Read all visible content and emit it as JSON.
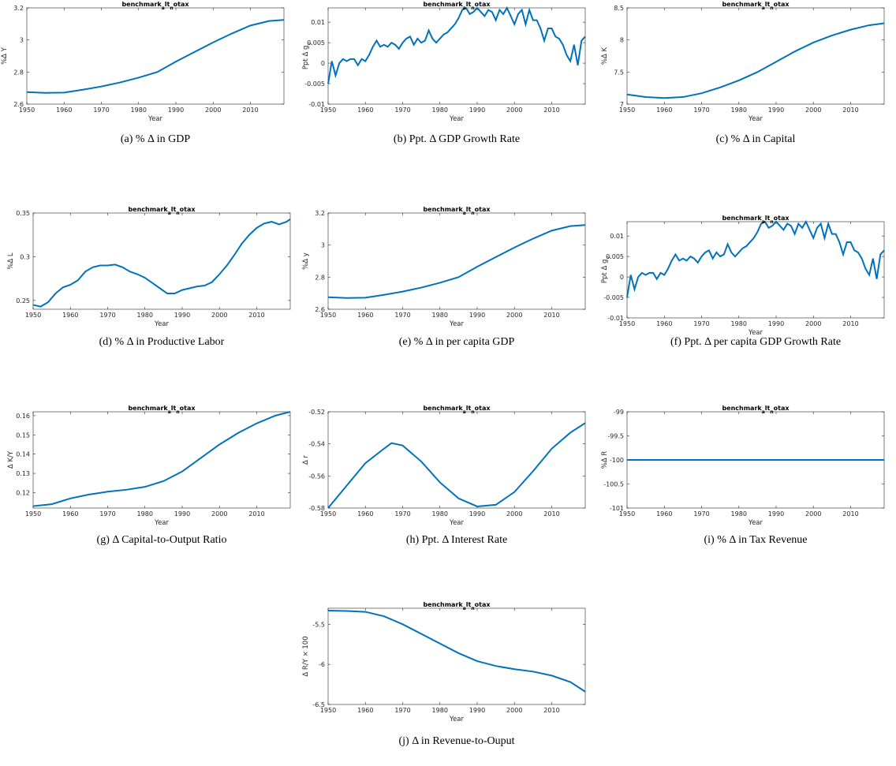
{
  "chart_data": [
    {
      "type": "line",
      "title": "benchmark_alt_notax",
      "xlabel": "Year",
      "ylabel": "%Δ Y",
      "caption": "(a) % Δ in GDP",
      "xlim": [
        1950,
        2019
      ],
      "xticks": [
        1950,
        1960,
        1970,
        1980,
        1990,
        2000,
        2010
      ],
      "ylim": [
        2.6,
        3.2
      ],
      "yticks": [
        2.6,
        2.8,
        3,
        3.2
      ],
      "series": [
        {
          "color": "#0072bd",
          "x": [
            1950,
            1955,
            1960,
            1965,
            1970,
            1975,
            1980,
            1985,
            1990,
            1995,
            2000,
            2005,
            2010,
            2015,
            2019
          ],
          "values": [
            2.675,
            2.67,
            2.672,
            2.69,
            2.71,
            2.735,
            2.765,
            2.8,
            2.865,
            2.925,
            2.985,
            3.04,
            3.09,
            3.118,
            3.125
          ]
        }
      ]
    },
    {
      "type": "line",
      "title": "benchmark_alt_notax",
      "xlabel": "Year",
      "ylabel": "Ppt Δ g_y",
      "caption": "(b) Ppt. Δ GDP Growth Rate",
      "xlim": [
        1950,
        2019
      ],
      "xticks": [
        1950,
        1960,
        1970,
        1980,
        1990,
        2000,
        2010
      ],
      "ylim": [
        -0.01,
        0.0135
      ],
      "yticks": [
        -0.01,
        -0.005,
        0,
        0.005,
        0.01
      ],
      "series": [
        {
          "color": "#0072bd",
          "x": [
            1950,
            1951,
            1952,
            1953,
            1954,
            1955,
            1956,
            1957,
            1958,
            1959,
            1960,
            1961,
            1962,
            1963,
            1964,
            1965,
            1966,
            1967,
            1968,
            1969,
            1970,
            1971,
            1972,
            1973,
            1974,
            1975,
            1976,
            1977,
            1978,
            1979,
            1980,
            1981,
            1982,
            1983,
            1984,
            1985,
            1986,
            1987,
            1988,
            1989,
            1990,
            1991,
            1992,
            1993,
            1994,
            1995,
            1996,
            1997,
            1998,
            1999,
            2000,
            2001,
            2002,
            2003,
            2004,
            2005,
            2006,
            2007,
            2008,
            2009,
            2010,
            2011,
            2012,
            2013,
            2014,
            2015,
            2016,
            2017,
            2018,
            2019
          ],
          "values": [
            -0.005,
            0.0005,
            -0.003,
            0,
            0.001,
            0.0005,
            0.001,
            0.001,
            -0.0005,
            0.001,
            0.0005,
            0.002,
            0.004,
            0.0055,
            0.004,
            0.0045,
            0.004,
            0.005,
            0.0045,
            0.0035,
            0.005,
            0.006,
            0.0065,
            0.0045,
            0.006,
            0.005,
            0.0055,
            0.008,
            0.006,
            0.005,
            0.006,
            0.007,
            0.0075,
            0.0085,
            0.0095,
            0.011,
            0.013,
            0.0135,
            0.012,
            0.0125,
            0.0135,
            0.0125,
            0.0115,
            0.013,
            0.0125,
            0.0105,
            0.013,
            0.012,
            0.0135,
            0.0115,
            0.0095,
            0.012,
            0.013,
            0.0095,
            0.013,
            0.0105,
            0.0105,
            0.0085,
            0.0055,
            0.0085,
            0.0085,
            0.0065,
            0.006,
            0.0045,
            0.002,
            0.0005,
            0.0045,
            -0.0005,
            0.0055,
            0.0065
          ]
        }
      ]
    },
    {
      "type": "line",
      "title": "benchmark_alt_notax",
      "xlabel": "Year",
      "ylabel": "%Δ K",
      "caption": "(c) % Δ in Capital",
      "xlim": [
        1950,
        2019
      ],
      "xticks": [
        1950,
        1960,
        1970,
        1980,
        1990,
        2000,
        2010
      ],
      "ylim": [
        7,
        8.5
      ],
      "yticks": [
        7,
        7.5,
        8,
        8.5
      ],
      "series": [
        {
          "color": "#0072bd",
          "x": [
            1950,
            1955,
            1960,
            1965,
            1970,
            1975,
            1980,
            1985,
            1990,
            1995,
            2000,
            2005,
            2010,
            2015,
            2019
          ],
          "values": [
            7.15,
            7.11,
            7.095,
            7.11,
            7.17,
            7.26,
            7.37,
            7.5,
            7.66,
            7.82,
            7.96,
            8.07,
            8.16,
            8.23,
            8.26
          ]
        }
      ]
    },
    {
      "type": "line",
      "title": "benchmark_alt_notax",
      "xlabel": "Year",
      "ylabel": "%Δ L",
      "caption": "(d) % Δ in Productive Labor",
      "xlim": [
        1950,
        2019
      ],
      "xticks": [
        1950,
        1960,
        1970,
        1980,
        1990,
        2000,
        2010
      ],
      "ylim": [
        0.24,
        0.35
      ],
      "yticks": [
        0.25,
        0.3,
        0.35
      ],
      "series": [
        {
          "color": "#0072bd",
          "x": [
            1950,
            1952,
            1954,
            1956,
            1958,
            1960,
            1962,
            1964,
            1966,
            1968,
            1970,
            1972,
            1974,
            1976,
            1978,
            1980,
            1982,
            1984,
            1986,
            1988,
            1990,
            1992,
            1994,
            1996,
            1998,
            2000,
            2002,
            2004,
            2006,
            2008,
            2010,
            2012,
            2014,
            2016,
            2018,
            2019
          ],
          "values": [
            0.245,
            0.243,
            0.248,
            0.258,
            0.265,
            0.268,
            0.273,
            0.283,
            0.288,
            0.29,
            0.29,
            0.291,
            0.288,
            0.283,
            0.28,
            0.276,
            0.27,
            0.264,
            0.258,
            0.258,
            0.262,
            0.264,
            0.266,
            0.267,
            0.271,
            0.28,
            0.29,
            0.302,
            0.315,
            0.325,
            0.333,
            0.338,
            0.34,
            0.337,
            0.34,
            0.343
          ]
        }
      ]
    },
    {
      "type": "line",
      "title": "benchmark_alt_notax",
      "xlabel": "Year",
      "ylabel": "%Δ y",
      "caption": "(e) % Δ in per capita GDP",
      "xlim": [
        1950,
        2019
      ],
      "xticks": [
        1950,
        1960,
        1970,
        1980,
        1990,
        2000,
        2010
      ],
      "ylim": [
        2.6,
        3.2
      ],
      "yticks": [
        2.6,
        2.8,
        3,
        3.2
      ],
      "series": [
        {
          "color": "#0072bd",
          "x": [
            1950,
            1955,
            1960,
            1965,
            1970,
            1975,
            1980,
            1985,
            1990,
            1995,
            2000,
            2005,
            2010,
            2015,
            2019
          ],
          "values": [
            2.675,
            2.67,
            2.672,
            2.69,
            2.71,
            2.735,
            2.765,
            2.8,
            2.865,
            2.925,
            2.985,
            3.04,
            3.09,
            3.118,
            3.125
          ]
        }
      ]
    },
    {
      "type": "line",
      "title": "benchmark_alt_notax",
      "xlabel": "Year",
      "ylabel": "Ppt Δ g_y",
      "caption": "(f) Ppt. Δ per capita GDP Growth Rate",
      "xlim": [
        1950,
        2019
      ],
      "xticks": [
        1950,
        1960,
        1970,
        1980,
        1990,
        2000,
        2010
      ],
      "ylim": [
        -0.01,
        0.0135
      ],
      "yticks": [
        -0.01,
        -0.005,
        0,
        0.005,
        0.01
      ],
      "series": [
        {
          "color": "#0072bd",
          "x": [
            1950,
            1951,
            1952,
            1953,
            1954,
            1955,
            1956,
            1957,
            1958,
            1959,
            1960,
            1961,
            1962,
            1963,
            1964,
            1965,
            1966,
            1967,
            1968,
            1969,
            1970,
            1971,
            1972,
            1973,
            1974,
            1975,
            1976,
            1977,
            1978,
            1979,
            1980,
            1981,
            1982,
            1983,
            1984,
            1985,
            1986,
            1987,
            1988,
            1989,
            1990,
            1991,
            1992,
            1993,
            1994,
            1995,
            1996,
            1997,
            1998,
            1999,
            2000,
            2001,
            2002,
            2003,
            2004,
            2005,
            2006,
            2007,
            2008,
            2009,
            2010,
            2011,
            2012,
            2013,
            2014,
            2015,
            2016,
            2017,
            2018,
            2019
          ],
          "values": [
            -0.005,
            0.0005,
            -0.003,
            0,
            0.001,
            0.0005,
            0.001,
            0.001,
            -0.0005,
            0.001,
            0.0005,
            0.002,
            0.004,
            0.0055,
            0.004,
            0.0045,
            0.004,
            0.005,
            0.0045,
            0.0035,
            0.005,
            0.006,
            0.0065,
            0.0045,
            0.006,
            0.005,
            0.0055,
            0.008,
            0.006,
            0.005,
            0.006,
            0.007,
            0.0075,
            0.0085,
            0.0095,
            0.011,
            0.013,
            0.0135,
            0.012,
            0.0125,
            0.0135,
            0.0125,
            0.0115,
            0.013,
            0.0125,
            0.0105,
            0.013,
            0.012,
            0.0135,
            0.0115,
            0.0095,
            0.012,
            0.013,
            0.0095,
            0.013,
            0.0105,
            0.0105,
            0.0085,
            0.0055,
            0.0085,
            0.0085,
            0.0065,
            0.006,
            0.0045,
            0.002,
            0.0005,
            0.0045,
            -0.0005,
            0.0055,
            0.0065
          ]
        }
      ]
    },
    {
      "type": "line",
      "title": "benchmark_alt_notax",
      "xlabel": "Year",
      "ylabel": "Δ K/Y",
      "caption": "(g) Δ Capital-to-Output Ratio",
      "xlim": [
        1950,
        2019
      ],
      "xticks": [
        1950,
        1960,
        1970,
        1980,
        1990,
        2000,
        2010
      ],
      "ylim": [
        0.112,
        0.162
      ],
      "yticks": [
        0.12,
        0.13,
        0.14,
        0.15,
        0.16
      ],
      "series": [
        {
          "color": "#0072bd",
          "x": [
            1950,
            1955,
            1960,
            1965,
            1970,
            1975,
            1980,
            1985,
            1990,
            1995,
            2000,
            2005,
            2010,
            2015,
            2019
          ],
          "values": [
            0.113,
            0.114,
            0.117,
            0.119,
            0.1205,
            0.1215,
            0.123,
            0.126,
            0.131,
            0.138,
            0.145,
            0.151,
            0.156,
            0.16,
            0.162
          ]
        }
      ]
    },
    {
      "type": "line",
      "title": "benchmark_alt_notax",
      "xlabel": "Year",
      "ylabel": "Δ r",
      "caption": "(h) Ppt. Δ Interest Rate",
      "xlim": [
        1950,
        2019
      ],
      "xticks": [
        1950,
        1960,
        1970,
        1980,
        1990,
        2000,
        2010
      ],
      "ylim": [
        -0.58,
        -0.52
      ],
      "yticks": [
        -0.58,
        -0.56,
        -0.54,
        -0.52
      ],
      "series": [
        {
          "color": "#0072bd",
          "x": [
            1950,
            1955,
            1960,
            1965,
            1967,
            1970,
            1975,
            1980,
            1985,
            1990,
            1995,
            2000,
            2005,
            2010,
            2015,
            2019
          ],
          "values": [
            -0.58,
            -0.566,
            -0.552,
            -0.543,
            -0.5395,
            -0.541,
            -0.551,
            -0.564,
            -0.574,
            -0.579,
            -0.578,
            -0.57,
            -0.557,
            -0.543,
            -0.533,
            -0.527
          ]
        }
      ]
    },
    {
      "type": "line",
      "title": "benchmark_alt_notax",
      "xlabel": "Year",
      "ylabel": "%Δ R",
      "caption": "(i) % Δ in Tax Revenue",
      "xlim": [
        1950,
        2019
      ],
      "xticks": [
        1950,
        1960,
        1970,
        1980,
        1990,
        2000,
        2010
      ],
      "ylim": [
        -101,
        -99
      ],
      "yticks": [
        -101,
        -100.5,
        -100,
        -99.5,
        -99
      ],
      "series": [
        {
          "color": "#0072bd",
          "x": [
            1950,
            1960,
            1970,
            1980,
            1990,
            2000,
            2010,
            2019
          ],
          "values": [
            -100,
            -100,
            -100,
            -100,
            -100,
            -100,
            -100,
            -100
          ]
        }
      ]
    },
    {
      "type": "line",
      "title": "benchmark_alt_notax",
      "xlabel": "Year",
      "ylabel": "Δ R/Y × 100",
      "caption": "(j) Δ in Revenue-to-Ouput",
      "xlim": [
        1950,
        2019
      ],
      "xticks": [
        1950,
        1960,
        1970,
        1980,
        1990,
        2000,
        2010
      ],
      "ylim": [
        -6.5,
        -5.3
      ],
      "yticks": [
        -6.5,
        -6,
        -5.5
      ],
      "series": [
        {
          "color": "#0072bd",
          "x": [
            1950,
            1955,
            1960,
            1965,
            1970,
            1975,
            1980,
            1985,
            1990,
            1995,
            2000,
            2005,
            2010,
            2015,
            2019
          ],
          "values": [
            -5.33,
            -5.335,
            -5.345,
            -5.4,
            -5.5,
            -5.62,
            -5.74,
            -5.86,
            -5.96,
            -6.02,
            -6.06,
            -6.09,
            -6.14,
            -6.22,
            -6.34
          ]
        }
      ]
    }
  ]
}
